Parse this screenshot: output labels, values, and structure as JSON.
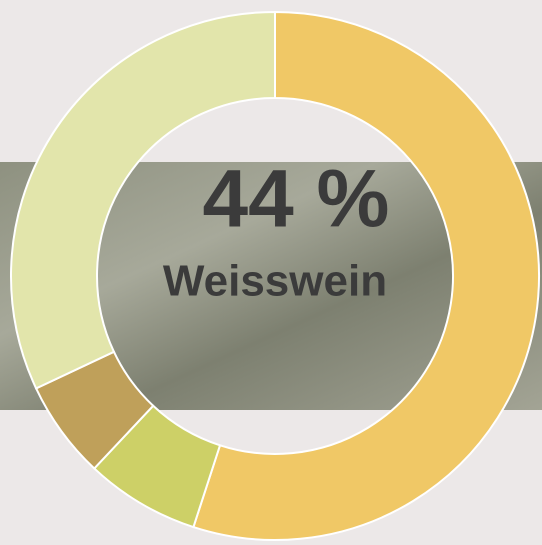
{
  "chart_data": {
    "type": "donut",
    "values": [
      55,
      7,
      6,
      32
    ],
    "colors": [
      "#f0c866",
      "#cdd067",
      "#bfa05a",
      "#e2e5ab"
    ],
    "center_value": "44 %",
    "center_name": "Weisswein"
  }
}
